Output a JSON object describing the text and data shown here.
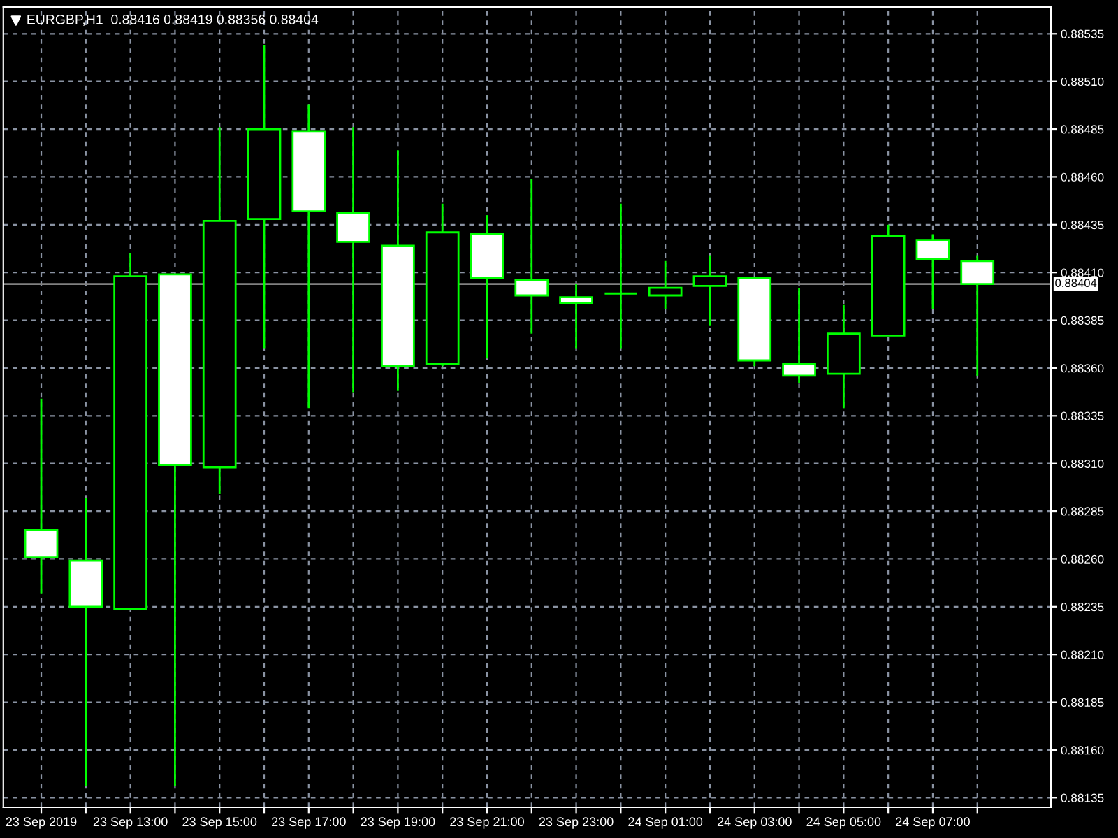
{
  "chart_data": {
    "type": "candlestick",
    "title": "EURGBP,H1  0.88416 0.88419 0.88356 0.88404",
    "categories": [
      "23 Sep 2019",
      null,
      "23 Sep 13:00",
      null,
      "23 Sep 15:00",
      null,
      "23 Sep 17:00",
      null,
      "23 Sep 19:00",
      null,
      "23 Sep 21:00",
      null,
      "23 Sep 23:00",
      null,
      "24 Sep 01:00",
      null,
      "24 Sep 03:00",
      null,
      "24 Sep 05:00",
      null,
      "24 Sep 07:00",
      null
    ],
    "ohlc": [
      [
        0.88275,
        0.88344,
        0.88242,
        0.88261
      ],
      [
        0.88259,
        0.88292,
        0.88141,
        0.88235
      ],
      [
        0.88234,
        0.8842,
        0.88234,
        0.88408
      ],
      [
        0.88409,
        0.88409,
        0.88141,
        0.88309
      ],
      [
        0.88308,
        0.88486,
        0.88294,
        0.88437
      ],
      [
        0.88438,
        0.88529,
        0.8837,
        0.88485
      ],
      [
        0.88484,
        0.88498,
        0.88339,
        0.88442
      ],
      [
        0.88441,
        0.88486,
        0.88347,
        0.88426
      ],
      [
        0.88424,
        0.88474,
        0.88348,
        0.88361
      ],
      [
        0.88362,
        0.88446,
        0.88361,
        0.88431
      ],
      [
        0.8843,
        0.8844,
        0.88365,
        0.88407
      ],
      [
        0.88406,
        0.88459,
        0.88378,
        0.88398
      ],
      [
        0.88397,
        0.88404,
        0.8837,
        0.88394
      ],
      [
        0.88399,
        0.88446,
        0.8837,
        0.88399
      ],
      [
        0.88398,
        0.88416,
        0.88391,
        0.88402
      ],
      [
        0.88403,
        0.88419,
        0.88382,
        0.88408
      ],
      [
        0.88407,
        0.88407,
        0.88361,
        0.88364
      ],
      [
        0.88362,
        0.88402,
        0.88352,
        0.88356
      ],
      [
        0.88357,
        0.88393,
        0.88339,
        0.88378
      ],
      [
        0.88377,
        0.88435,
        0.88377,
        0.88429
      ],
      [
        0.88427,
        0.8843,
        0.88391,
        0.88417
      ],
      [
        0.88416,
        0.88419,
        0.88356,
        0.88404
      ]
    ],
    "color": "#00ff00",
    "colors": [
      "#ffffff",
      "#ffffff",
      "#000000",
      "#ffffff",
      "#000000",
      "#000000",
      "#ffffff",
      "#ffffff",
      "#ffffff",
      "#000000",
      "#ffffff",
      "#ffffff",
      "#ffffff",
      "#00ff00",
      "#000000",
      "#000000",
      "#ffffff",
      "#ffffff",
      "#000000",
      "#000000",
      "#ffffff",
      "#ffffff"
    ],
    "ylim": [
      0.8813,
      0.88549
    ],
    "yticks": [
      0.88135,
      {
        "value": 0.8816,
        "label": "0.88160"
      },
      0.88185,
      {
        "value": 0.8821,
        "label": "0.88210"
      },
      0.88235,
      {
        "value": 0.8826,
        "label": "0.88260"
      },
      0.88285,
      {
        "value": 0.8831,
        "label": "0.88310"
      },
      0.88335,
      {
        "value": 0.8836,
        "label": "0.88360"
      },
      0.88385,
      {
        "value": 0.8841,
        "label": "0.88410"
      },
      0.88435,
      {
        "value": 0.8846,
        "label": "0.88460"
      },
      0.88485,
      {
        "value": 0.8851,
        "label": "0.88510"
      },
      0.88535
    ],
    "ref_lines": [
      {
        "axis": "y",
        "value": 0.88404,
        "label": "0.88404",
        "color": "#808080",
        "line_style": "solid"
      }
    ],
    "grid": true
  }
}
